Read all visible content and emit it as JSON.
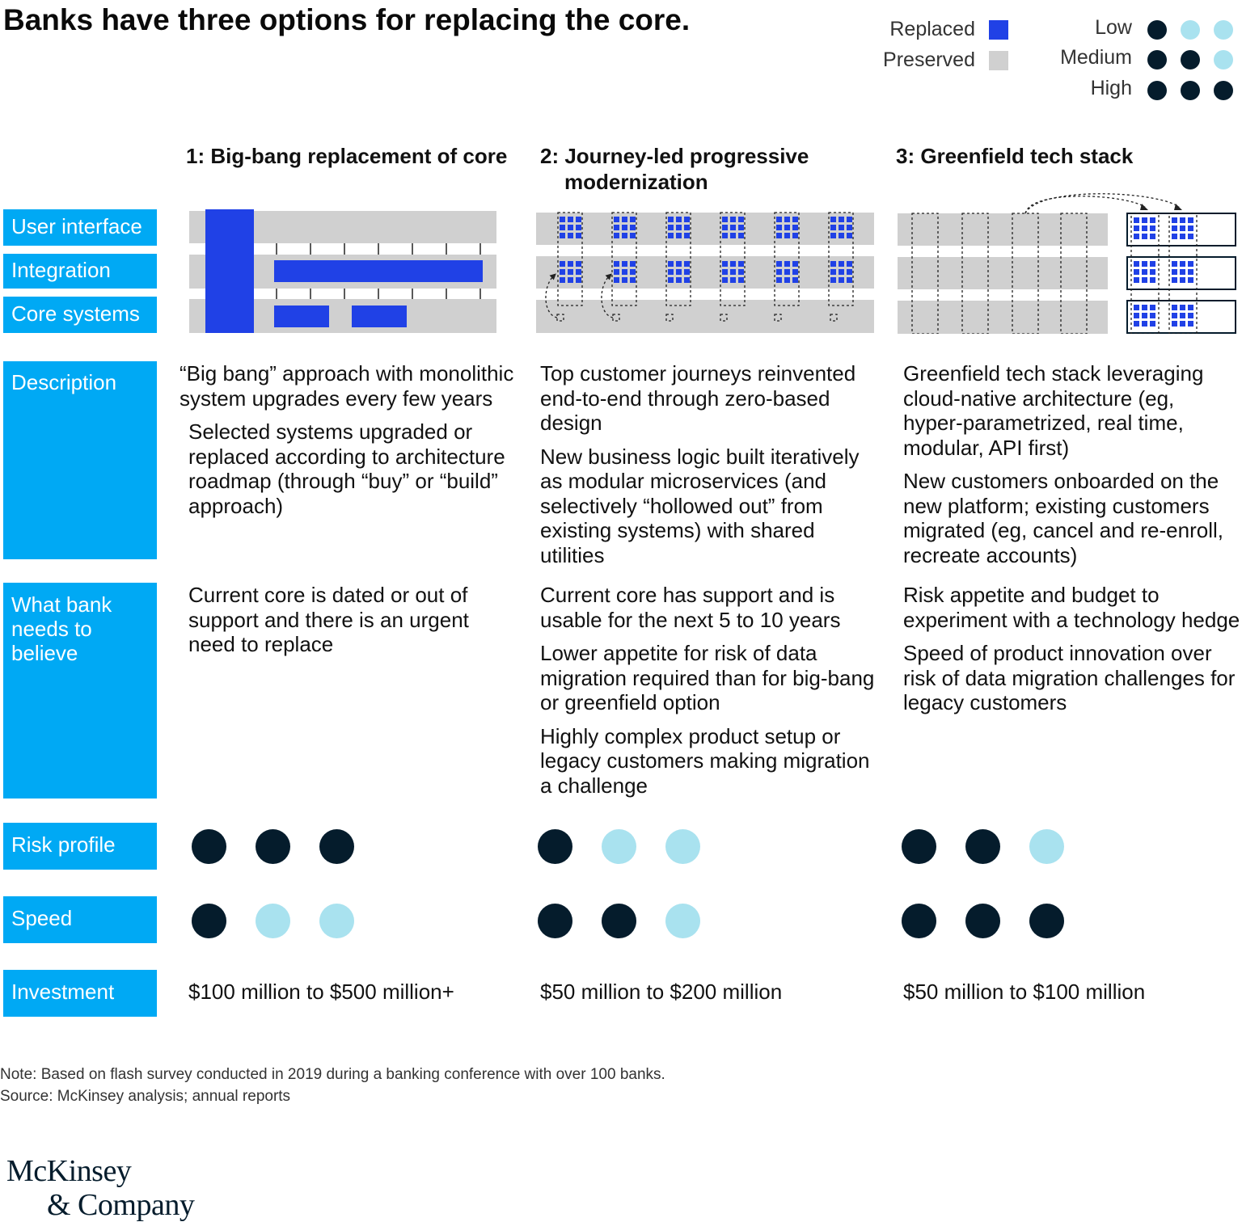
{
  "title": "Banks have three options for replacing the core.",
  "legend": {
    "status": [
      {
        "label": "Replaced",
        "color": "#2041e6"
      },
      {
        "label": "Preserved",
        "color": "#d0d0d0"
      }
    ],
    "levels": [
      {
        "label": "Low",
        "dots": [
          1,
          0,
          0
        ]
      },
      {
        "label": "Medium",
        "dots": [
          1,
          1,
          0
        ]
      },
      {
        "label": "High",
        "dots": [
          1,
          1,
          1
        ]
      }
    ],
    "dot_colors": {
      "filled": "#051c2c",
      "empty": "#a9e2ef"
    }
  },
  "columns": [
    {
      "heading": "1: Big-bang replacement of core"
    },
    {
      "heading_line1": "2: Journey-led progressive",
      "heading_line2": "modernization"
    },
    {
      "heading": "3: Greenfield tech stack"
    }
  ],
  "row_labels": {
    "user_interface": "User interface",
    "integration": "Integration",
    "core_systems": "Core systems",
    "description": "Description",
    "believe": [
      "What bank",
      "needs to",
      "believe"
    ],
    "risk": "Risk profile",
    "speed": "Speed",
    "investment": "Investment"
  },
  "description": [
    [
      "“Big bang” approach with monolithic system upgrades every few years",
      "Selected systems upgraded or replaced according to architecture roadmap (through “buy” or “build” approach)"
    ],
    [
      "Top customer journeys reinvented end-to-end through zero-based design",
      "New business logic built iteratively as modular microservices (and selectively “hollowed out” from existing systems) with shared utilities"
    ],
    [
      "Greenfield tech stack leveraging cloud-native architecture (eg, hyper-parametrized, real time, modular, API first)",
      "New customers onboarded on the new platform; existing customers migrated (eg, cancel and re-enroll, recreate accounts)"
    ]
  ],
  "believe": [
    [
      "Current core is dated or out of support and there is an urgent need to replace"
    ],
    [
      "Current core has support and is usable for the next 5 to 10 years",
      "Lower appetite for risk of data migration required than for big-bang or greenfield option",
      "Highly complex product setup or legacy customers making migration a challenge"
    ],
    [
      "Risk appetite and budget to experiment with a technology hedge",
      "Speed of product innovation over risk of data migration challenges for legacy customers"
    ]
  ],
  "risk_profile": [
    "High",
    "Low",
    "Medium"
  ],
  "speed": [
    "Low",
    "Medium",
    "High"
  ],
  "investment": [
    "$100 million to $500 million+",
    "$50 million to $200 million",
    "$50 million to $100 million"
  ],
  "note": "Note: Based on flash survey conducted in 2019 during a banking conference with over 100 banks.",
  "source": "Source: McKinsey analysis; annual reports",
  "logo": {
    "line1": "McKinsey",
    "line2": "& Company"
  }
}
